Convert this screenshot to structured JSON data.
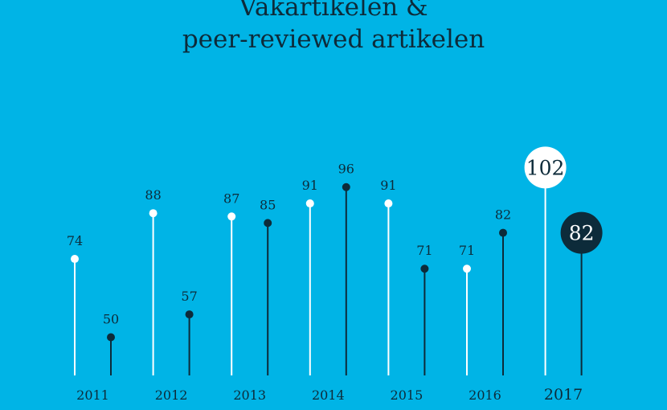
{
  "chart_data": {
    "type": "lollipop",
    "title_lines": [
      "Vakartikelen &",
      "peer-reviewed artikelen"
    ],
    "categories": [
      "2011",
      "2012",
      "2013",
      "2014",
      "2015",
      "2016",
      "2017"
    ],
    "series": [
      {
        "values": [
          74,
          88,
          87,
          91,
          91,
          71,
          102
        ],
        "color": "#ffffff",
        "label_color": "#0d2b3a"
      },
      {
        "values": [
          50,
          57,
          85,
          96,
          71,
          82,
          82
        ],
        "color": "#0d2b3a",
        "label_color": "#0d2b3a"
      }
    ],
    "highlight_category": "2017",
    "grid": false,
    "legend": "none"
  }
}
